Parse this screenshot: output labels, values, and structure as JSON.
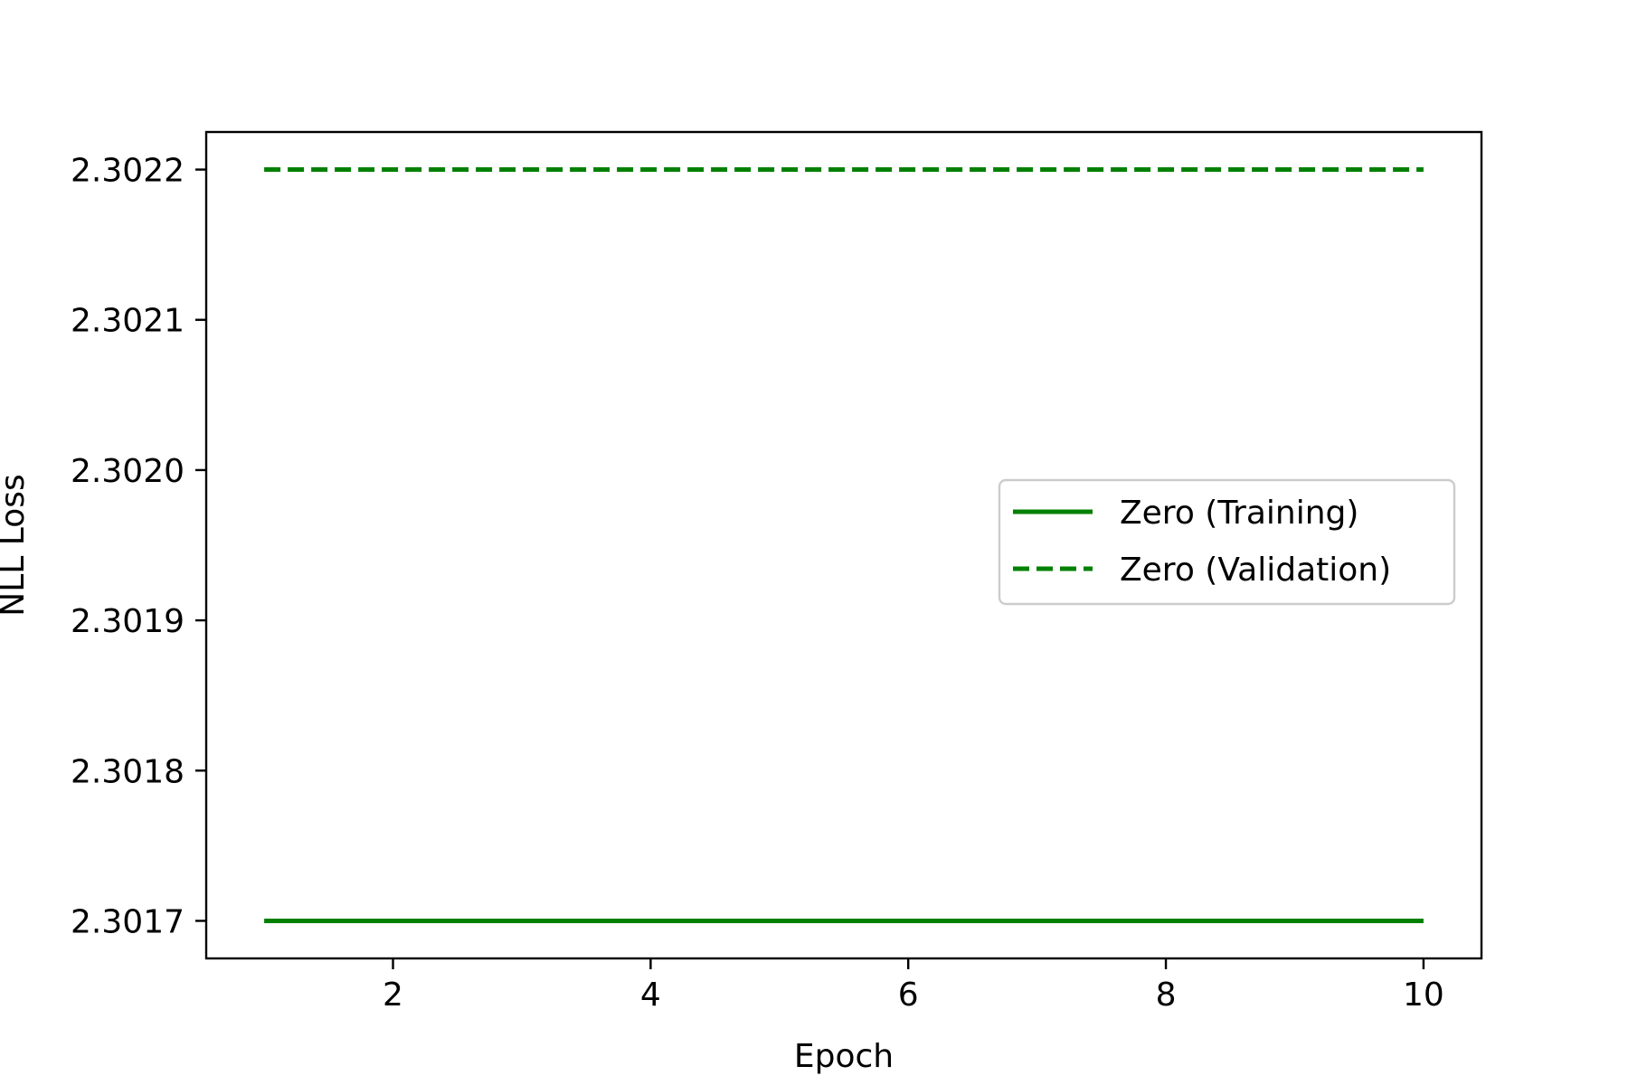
{
  "chart_data": {
    "type": "line",
    "xlabel": "Epoch",
    "ylabel": "NLL Loss",
    "x": [
      1,
      2,
      3,
      4,
      5,
      6,
      7,
      8,
      9,
      10
    ],
    "xlim": [
      0.55,
      10.45
    ],
    "ylim": [
      2.301675,
      2.302225
    ],
    "xticks": [
      2,
      4,
      6,
      8,
      10
    ],
    "xtick_labels": [
      "2",
      "4",
      "6",
      "8",
      "10"
    ],
    "yticks": [
      2.3017,
      2.3018,
      2.3019,
      2.302,
      2.3021,
      2.3022
    ],
    "ytick_labels": [
      "2.3017",
      "2.3018",
      "2.3019",
      "2.3020",
      "2.3021",
      "2.3022"
    ],
    "grid": false,
    "legend_position": "center-right",
    "series": [
      {
        "name": "Zero (Training)",
        "values": [
          2.3017,
          2.3017,
          2.3017,
          2.3017,
          2.3017,
          2.3017,
          2.3017,
          2.3017,
          2.3017,
          2.3017
        ],
        "color": "#008000",
        "style": "solid"
      },
      {
        "name": "Zero (Validation)",
        "values": [
          2.3022,
          2.3022,
          2.3022,
          2.3022,
          2.3022,
          2.3022,
          2.3022,
          2.3022,
          2.3022,
          2.3022
        ],
        "color": "#008000",
        "style": "dashed"
      }
    ]
  }
}
